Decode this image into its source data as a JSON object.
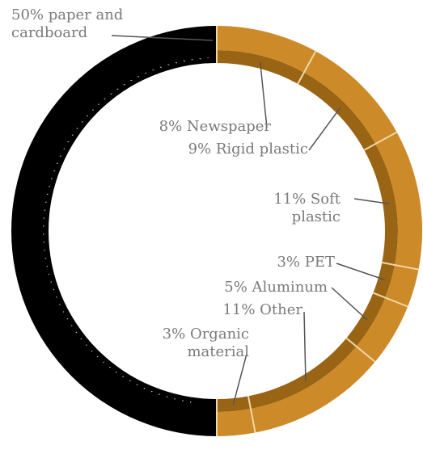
{
  "chart_data": {
    "type": "pie",
    "style": "donut",
    "colors": {
      "dominant": "#000000",
      "others": "#cd8a28",
      "others_dark": "#9a6415",
      "divider": "#f0d7a6",
      "leader": "#555555",
      "label_text": "#7a7a7a"
    },
    "slices": [
      {
        "label": "50% paper and cardboard",
        "lines": [
          "50% paper and",
          "cardboard"
        ],
        "value": 50
      },
      {
        "label": "8% Newspaper",
        "lines": [
          "8% Newspaper"
        ],
        "value": 8
      },
      {
        "label": "9% Rigid plastic",
        "lines": [
          "9% Rigid plastic"
        ],
        "value": 9
      },
      {
        "label": "11% Soft plastic",
        "lines": [
          "11% Soft",
          "plastic"
        ],
        "value": 11
      },
      {
        "label": "3% PET",
        "lines": [
          "3% PET"
        ],
        "value": 3
      },
      {
        "label": "5% Aluminum",
        "lines": [
          "5% Aluminum"
        ],
        "value": 5
      },
      {
        "label": "11% Other",
        "lines": [
          "11% Other"
        ],
        "value": 11
      },
      {
        "label": "3% Organic material",
        "lines": [
          "3% Organic",
          "material"
        ],
        "value": 3
      }
    ]
  }
}
